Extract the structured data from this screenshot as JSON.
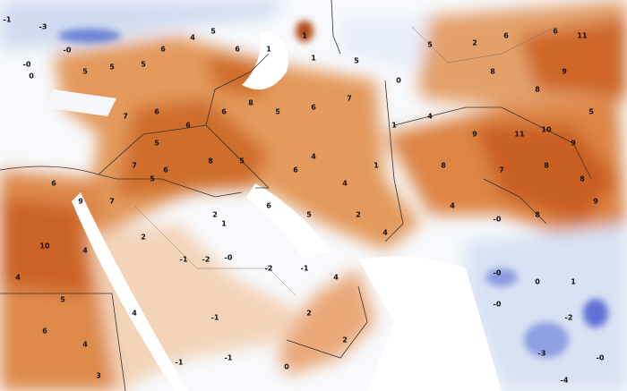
{
  "map": {
    "labels": [
      "-1",
      "-3",
      "-0",
      "-0",
      "0",
      "5",
      "5",
      "5",
      "6",
      "4",
      "5",
      "6",
      "1",
      "1",
      "1",
      "5",
      "0",
      "5",
      "2",
      "6",
      "6",
      "11",
      "9",
      "8",
      "8",
      "5",
      "7",
      "6",
      "6",
      "6",
      "8",
      "5",
      "6",
      "7",
      "1",
      "4",
      "9",
      "11",
      "10",
      "9",
      "5",
      "7",
      "6",
      "8",
      "5",
      "6",
      "4",
      "4",
      "1",
      "8",
      "7",
      "8",
      "8",
      "6",
      "9",
      "7",
      "5",
      "2",
      "6",
      "5",
      "2",
      "4",
      "4",
      "-0",
      "8",
      "9",
      "10",
      "4",
      "4",
      "2",
      "-1",
      "-2",
      "-0",
      "1",
      "-2",
      "-1",
      "4",
      "-0",
      "0",
      "1",
      "-2",
      "-3",
      "-0",
      "-0",
      "5",
      "6",
      "4",
      "4",
      "-1",
      "2",
      "2",
      "0",
      "-1",
      "-1",
      "3",
      "-4"
    ]
  }
}
